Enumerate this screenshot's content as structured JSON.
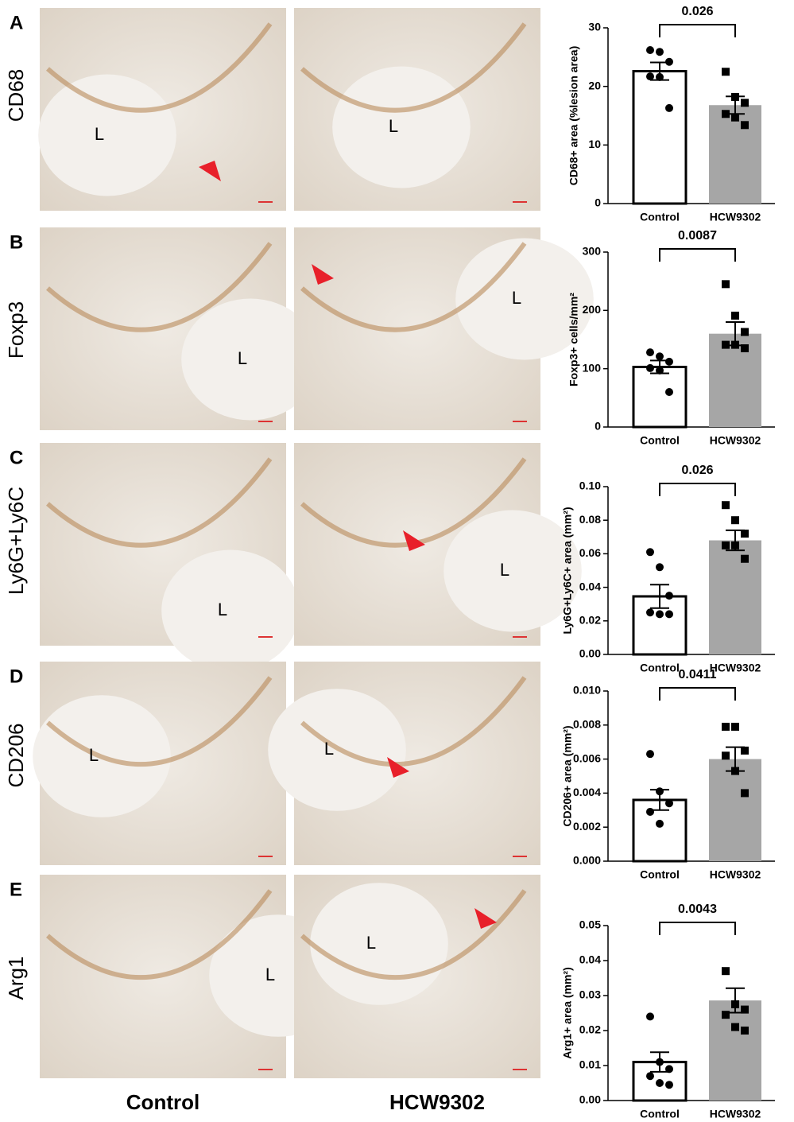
{
  "column_labels": [
    "Control",
    "HCW9302"
  ],
  "panels": [
    {
      "letter": "A",
      "stain": "CD68",
      "images": [
        {
          "lumen": "L"
        },
        {
          "lumen": "L"
        }
      ]
    },
    {
      "letter": "B",
      "stain": "Foxp3",
      "images": [
        {
          "lumen": "L"
        },
        {
          "lumen": "L"
        }
      ]
    },
    {
      "letter": "C",
      "stain": "Ly6G+Ly6C",
      "images": [
        {
          "lumen": "L"
        },
        {
          "lumen": "L"
        }
      ]
    },
    {
      "letter": "D",
      "stain": "CD206",
      "images": [
        {
          "lumen": "L"
        },
        {
          "lumen": "L"
        }
      ]
    },
    {
      "letter": "E",
      "stain": "Arg1",
      "images": [
        {
          "lumen": "L"
        },
        {
          "lumen": "L"
        }
      ]
    }
  ],
  "chart_data": [
    {
      "type": "bar",
      "ylabel": "CD68+ area (%lesion area)",
      "annotation": "0.026",
      "categories": [
        "Control",
        "HCW9302"
      ],
      "values": [
        22.6,
        16.8
      ],
      "errors": [
        1.5,
        1.5
      ],
      "points": [
        [
          26.2,
          25.9,
          24.2,
          21.7,
          21.6,
          16.3
        ],
        [
          22.5,
          18.2,
          17.2,
          15.3,
          14.7,
          13.4
        ]
      ],
      "colors": [
        "#ffffff",
        "#a6a6a6"
      ],
      "markers": [
        "circle",
        "square"
      ],
      "ylim": [
        0,
        30
      ],
      "yticks": [
        0,
        10,
        20,
        30
      ]
    },
    {
      "type": "bar",
      "ylabel": "Foxp3+ cells/mm²",
      "annotation": "0.0087",
      "categories": [
        "Control",
        "HCW9302"
      ],
      "values": [
        103,
        160
      ],
      "errors": [
        11,
        20
      ],
      "points": [
        [
          128,
          121,
          112,
          101,
          97,
          60
        ],
        [
          245,
          191,
          163,
          141,
          141,
          135
        ]
      ],
      "colors": [
        "#ffffff",
        "#a6a6a6"
      ],
      "markers": [
        "circle",
        "square"
      ],
      "ylim": [
        0,
        300
      ],
      "yticks": [
        0,
        100,
        200,
        300
      ]
    },
    {
      "type": "bar",
      "ylabel": "Ly6G+Ly6C+ area (mm²)",
      "annotation": "0.026",
      "categories": [
        "Control",
        "HCW9302"
      ],
      "values": [
        0.0346,
        0.068
      ],
      "errors": [
        0.007,
        0.006
      ],
      "points": [
        [
          0.061,
          0.052,
          0.035,
          0.025,
          0.024,
          0.024
        ],
        [
          0.089,
          0.08,
          0.072,
          0.065,
          0.065,
          0.057
        ]
      ],
      "colors": [
        "#ffffff",
        "#a6a6a6"
      ],
      "markers": [
        "circle",
        "square"
      ],
      "ylim": [
        0,
        0.1
      ],
      "yticks": [
        {
          "value": 0,
          "label": "0.00"
        },
        {
          "value": 0.02,
          "label": "0.02"
        },
        {
          "value": 0.04,
          "label": "0.04"
        },
        {
          "value": 0.06,
          "label": "0.06"
        },
        {
          "value": 0.08,
          "label": "0.08"
        },
        {
          "value": 0.1,
          "label": "0.10"
        }
      ]
    },
    {
      "type": "bar",
      "ylabel": "CD206+ area (mm²)",
      "annotation": "0.0411",
      "categories": [
        "Control",
        "HCW9302"
      ],
      "values": [
        0.0036,
        0.006
      ],
      "errors": [
        0.0006,
        0.0007
      ],
      "points": [
        [
          0.0063,
          0.0041,
          0.0034,
          0.0029,
          0.0022
        ],
        [
          0.0079,
          0.0079,
          0.0065,
          0.0062,
          0.0053,
          0.004
        ]
      ],
      "colors": [
        "#ffffff",
        "#a6a6a6"
      ],
      "markers": [
        "circle",
        "square"
      ],
      "ylim": [
        0,
        0.01
      ],
      "yticks": [
        {
          "value": 0,
          "label": "0.000"
        },
        {
          "value": 0.002,
          "label": "0.002"
        },
        {
          "value": 0.004,
          "label": "0.004"
        },
        {
          "value": 0.006,
          "label": "0.006"
        },
        {
          "value": 0.008,
          "label": "0.008"
        },
        {
          "value": 0.01,
          "label": "0.010"
        }
      ]
    },
    {
      "type": "bar",
      "ylabel": "Arg1+ area (mm²)",
      "annotation": "0.0043",
      "categories": [
        "Control",
        "HCW9302"
      ],
      "values": [
        0.011,
        0.0286
      ],
      "errors": [
        0.0028,
        0.0035
      ],
      "points": [
        [
          0.024,
          0.011,
          0.009,
          0.007,
          0.005,
          0.0045
        ],
        [
          0.037,
          0.0275,
          0.026,
          0.0245,
          0.021,
          0.02
        ]
      ],
      "colors": [
        "#ffffff",
        "#a6a6a6"
      ],
      "markers": [
        "circle",
        "square"
      ],
      "ylim": [
        0,
        0.05
      ],
      "yticks": [
        {
          "value": 0,
          "label": "0.00"
        },
        {
          "value": 0.01,
          "label": "0.01"
        },
        {
          "value": 0.02,
          "label": "0.02"
        },
        {
          "value": 0.03,
          "label": "0.03"
        },
        {
          "value": 0.04,
          "label": "0.04"
        },
        {
          "value": 0.05,
          "label": "0.05"
        }
      ]
    }
  ]
}
